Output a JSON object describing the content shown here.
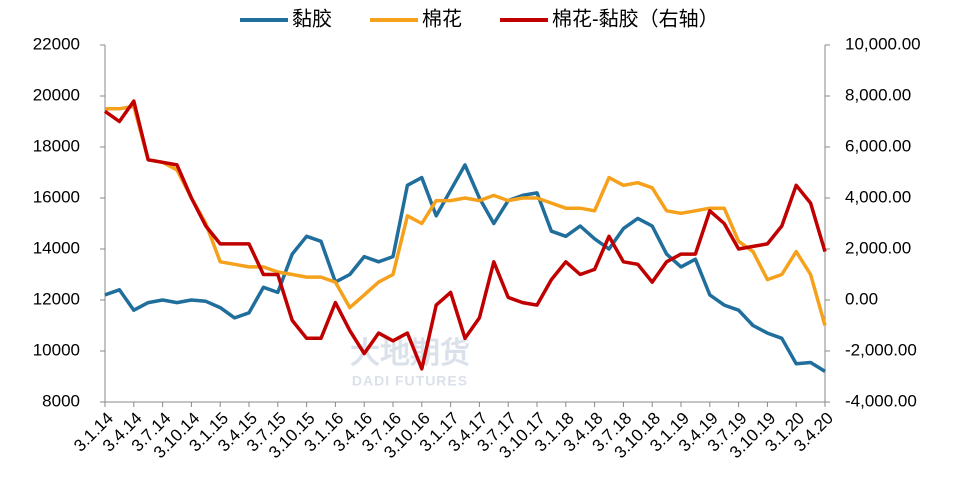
{
  "chart_data": {
    "type": "line",
    "categories": [
      "3.1.14",
      null,
      "3.4.14",
      null,
      "3.7.14",
      null,
      "3.10.14",
      null,
      "3.1.15",
      null,
      "3.4.15",
      null,
      "3.7.15",
      null,
      "3.10.15",
      null,
      "3.1.16",
      null,
      "3.4.16",
      null,
      "3.7.16",
      null,
      "3.10.16",
      null,
      "3.1.17",
      null,
      "3.4.17",
      null,
      "3.7.17",
      null,
      "3.10.17",
      null,
      "3.1.18",
      null,
      "3.4.18",
      null,
      "3.7.18",
      null,
      "3.10.18",
      null,
      "3.1.19",
      null,
      "3.4.19",
      null,
      "3.7.19",
      null,
      "3.10.19",
      null,
      "3.1.20",
      null,
      "3.4.20"
    ],
    "series": [
      {
        "name": "黏胶",
        "color": "#1f6e9c",
        "values": [
          12200,
          12400,
          11600,
          11900,
          12000,
          11900,
          12000,
          11950,
          11700,
          11300,
          11500,
          12500,
          12300,
          13800,
          14500,
          14300,
          12700,
          13000,
          13700,
          13500,
          13700,
          16500,
          16800,
          15300,
          16300,
          17300,
          16000,
          15000,
          15900,
          16100,
          16200,
          14700,
          14500,
          14900,
          14400,
          14000,
          14800,
          15200,
          14900,
          13800,
          13300,
          13600,
          12200,
          11800,
          11600,
          11000,
          10700,
          10500,
          9500,
          9550,
          9200
        ]
      },
      {
        "name": "棉花",
        "color": "#f5a11c",
        "values": [
          19500,
          19500,
          19600,
          17500,
          17400,
          17100,
          16000,
          15000,
          13500,
          13400,
          13300,
          13300,
          13100,
          13000,
          12900,
          12900,
          12700,
          11700,
          12200,
          12700,
          13000,
          15300,
          15000,
          15900,
          15900,
          16000,
          15900,
          16100,
          15900,
          16000,
          16000,
          15800,
          15600,
          15600,
          15500,
          16800,
          16500,
          16600,
          16400,
          15500,
          15400,
          15500,
          15600,
          15600,
          14300,
          13900,
          12800,
          13000,
          13900,
          13000,
          11000
        ]
      },
      {
        "name": "棉花-黏胶（右轴）",
        "color": "#c00000",
        "axis": "y2",
        "values": [
          7400,
          7000,
          7800,
          5500,
          5400,
          5300,
          4000,
          2900,
          2200,
          2200,
          2200,
          1000,
          1000,
          -800,
          -1500,
          -1500,
          -100,
          -1200,
          -2100,
          -1300,
          -1600,
          -1300,
          -2700,
          -200,
          300,
          -1500,
          -700,
          1500,
          100,
          -100,
          -200,
          800,
          1500,
          1000,
          1200,
          2500,
          1500,
          1400,
          700,
          1500,
          1800,
          1800,
          3500,
          3000,
          2000,
          2100,
          2200,
          2900,
          4500,
          3800,
          1900
        ]
      }
    ],
    "ylim": [
      8000,
      22000
    ],
    "yticks": [
      8000,
      10000,
      12000,
      14000,
      16000,
      18000,
      20000,
      22000
    ],
    "y2lim": [
      -4000,
      10000
    ],
    "y2ticks": [
      {
        "value": -4000,
        "label": "-4,000.00"
      },
      {
        "value": -2000,
        "label": "-2,000.00"
      },
      {
        "value": 0,
        "label": "0.00"
      },
      {
        "value": 2000,
        "label": "2,000.00"
      },
      {
        "value": 4000,
        "label": "4,000.00"
      },
      {
        "value": 6000,
        "label": "6,000.00"
      },
      {
        "value": 8000,
        "label": "8,000.00"
      },
      {
        "value": 10000,
        "label": "10,000.00"
      }
    ],
    "legend": "top",
    "watermark": [
      "大地期货",
      "DADI FUTURES"
    ]
  }
}
